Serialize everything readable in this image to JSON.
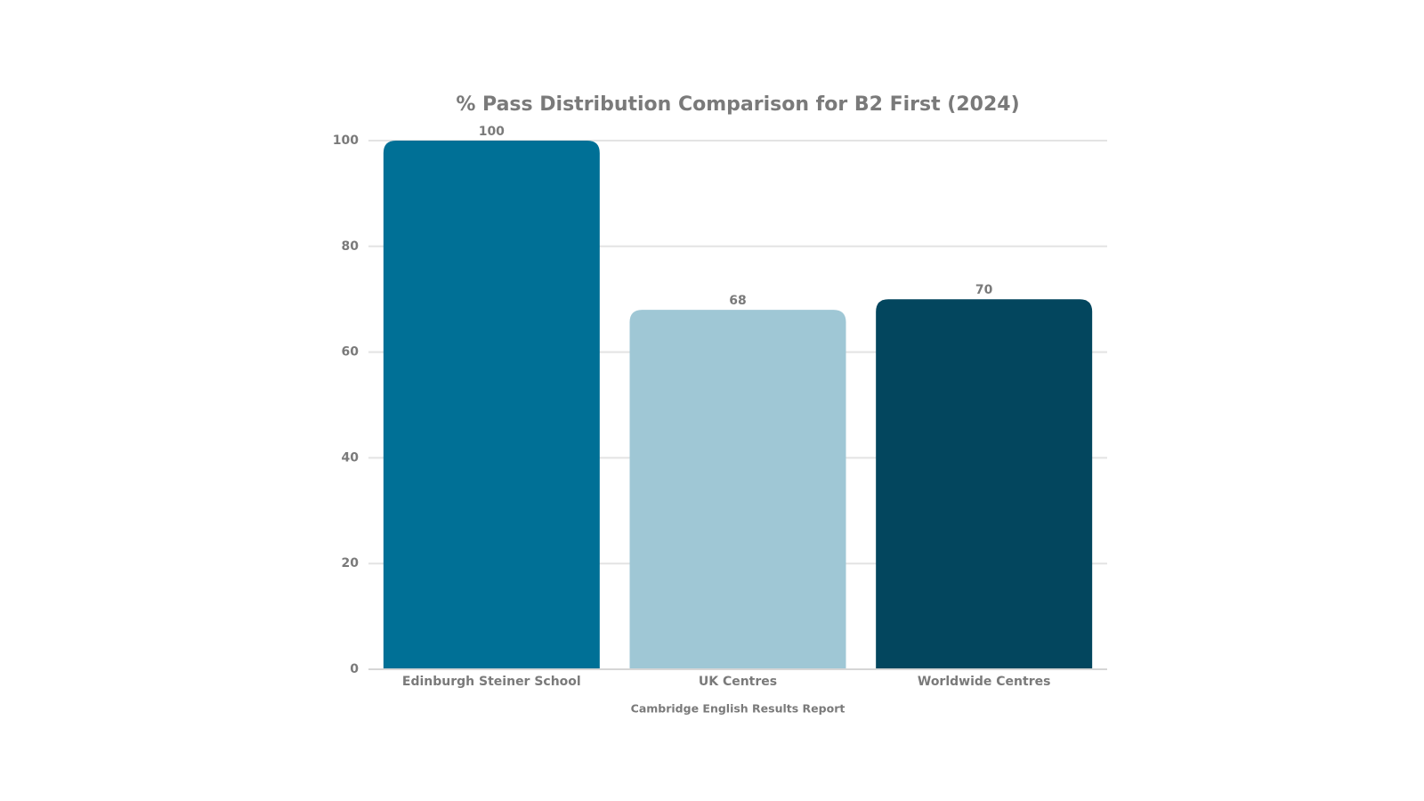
{
  "chart_data": {
    "type": "bar",
    "title": "% Pass Distribution Comparison for B2 First (2024)",
    "x_label": "Cambridge English Results Report",
    "categories": [
      "Edinburgh Steiner School",
      "UK Centres",
      "Worldwide Centres"
    ],
    "values": [
      100,
      68,
      70
    ],
    "colors": [
      "#007096",
      "#9fc7d5",
      "#03465e"
    ],
    "ylim": [
      0,
      100
    ],
    "yticks": [
      0,
      20,
      40,
      60,
      80,
      100
    ],
    "grid": true
  }
}
